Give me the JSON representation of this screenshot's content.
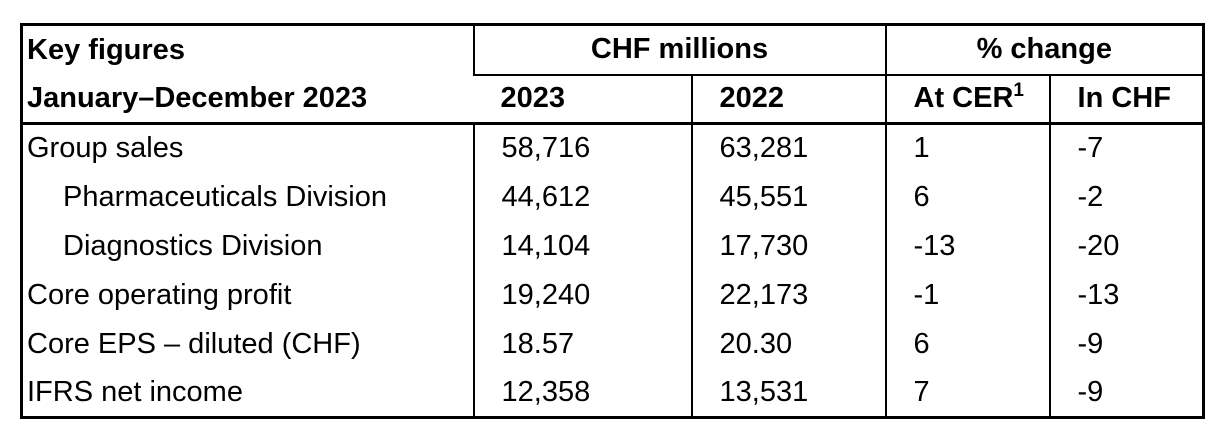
{
  "page": {
    "background": "#ffffff"
  },
  "table": {
    "title_line1": "Key figures",
    "title_line2": "January–December 2023",
    "group_headers": [
      "CHF millions",
      "% change"
    ],
    "column_headers": [
      "2023",
      "2022",
      "At CER",
      "In CHF"
    ],
    "cer_footnote_marker": "1",
    "rows": [
      {
        "label": "Group sales",
        "indent": false,
        "chf_2023": "58,716",
        "chf_2022": "63,281",
        "pct_at_cer": "1",
        "pct_in_chf": "-7"
      },
      {
        "label": "Pharmaceuticals Division",
        "indent": true,
        "chf_2023": "44,612",
        "chf_2022": "45,551",
        "pct_at_cer": "6",
        "pct_in_chf": "-2"
      },
      {
        "label": "Diagnostics Division",
        "indent": true,
        "chf_2023": "14,104",
        "chf_2022": "17,730",
        "pct_at_cer": "-13",
        "pct_in_chf": "-20"
      },
      {
        "label": "Core operating profit",
        "indent": false,
        "chf_2023": "19,240",
        "chf_2022": "22,173",
        "pct_at_cer": "-1",
        "pct_in_chf": "-13"
      },
      {
        "label": "Core EPS – diluted (CHF)",
        "indent": false,
        "chf_2023": "18.57",
        "chf_2022": "20.30",
        "pct_at_cer": "6",
        "pct_in_chf": "-9"
      },
      {
        "label": "IFRS net income",
        "indent": false,
        "chf_2023": "12,358",
        "chf_2022": "13,531",
        "pct_at_cer": "7",
        "pct_in_chf": "-9"
      }
    ],
    "colors": {
      "border": "#000000",
      "text": "#000000",
      "background": "#ffffff"
    }
  }
}
